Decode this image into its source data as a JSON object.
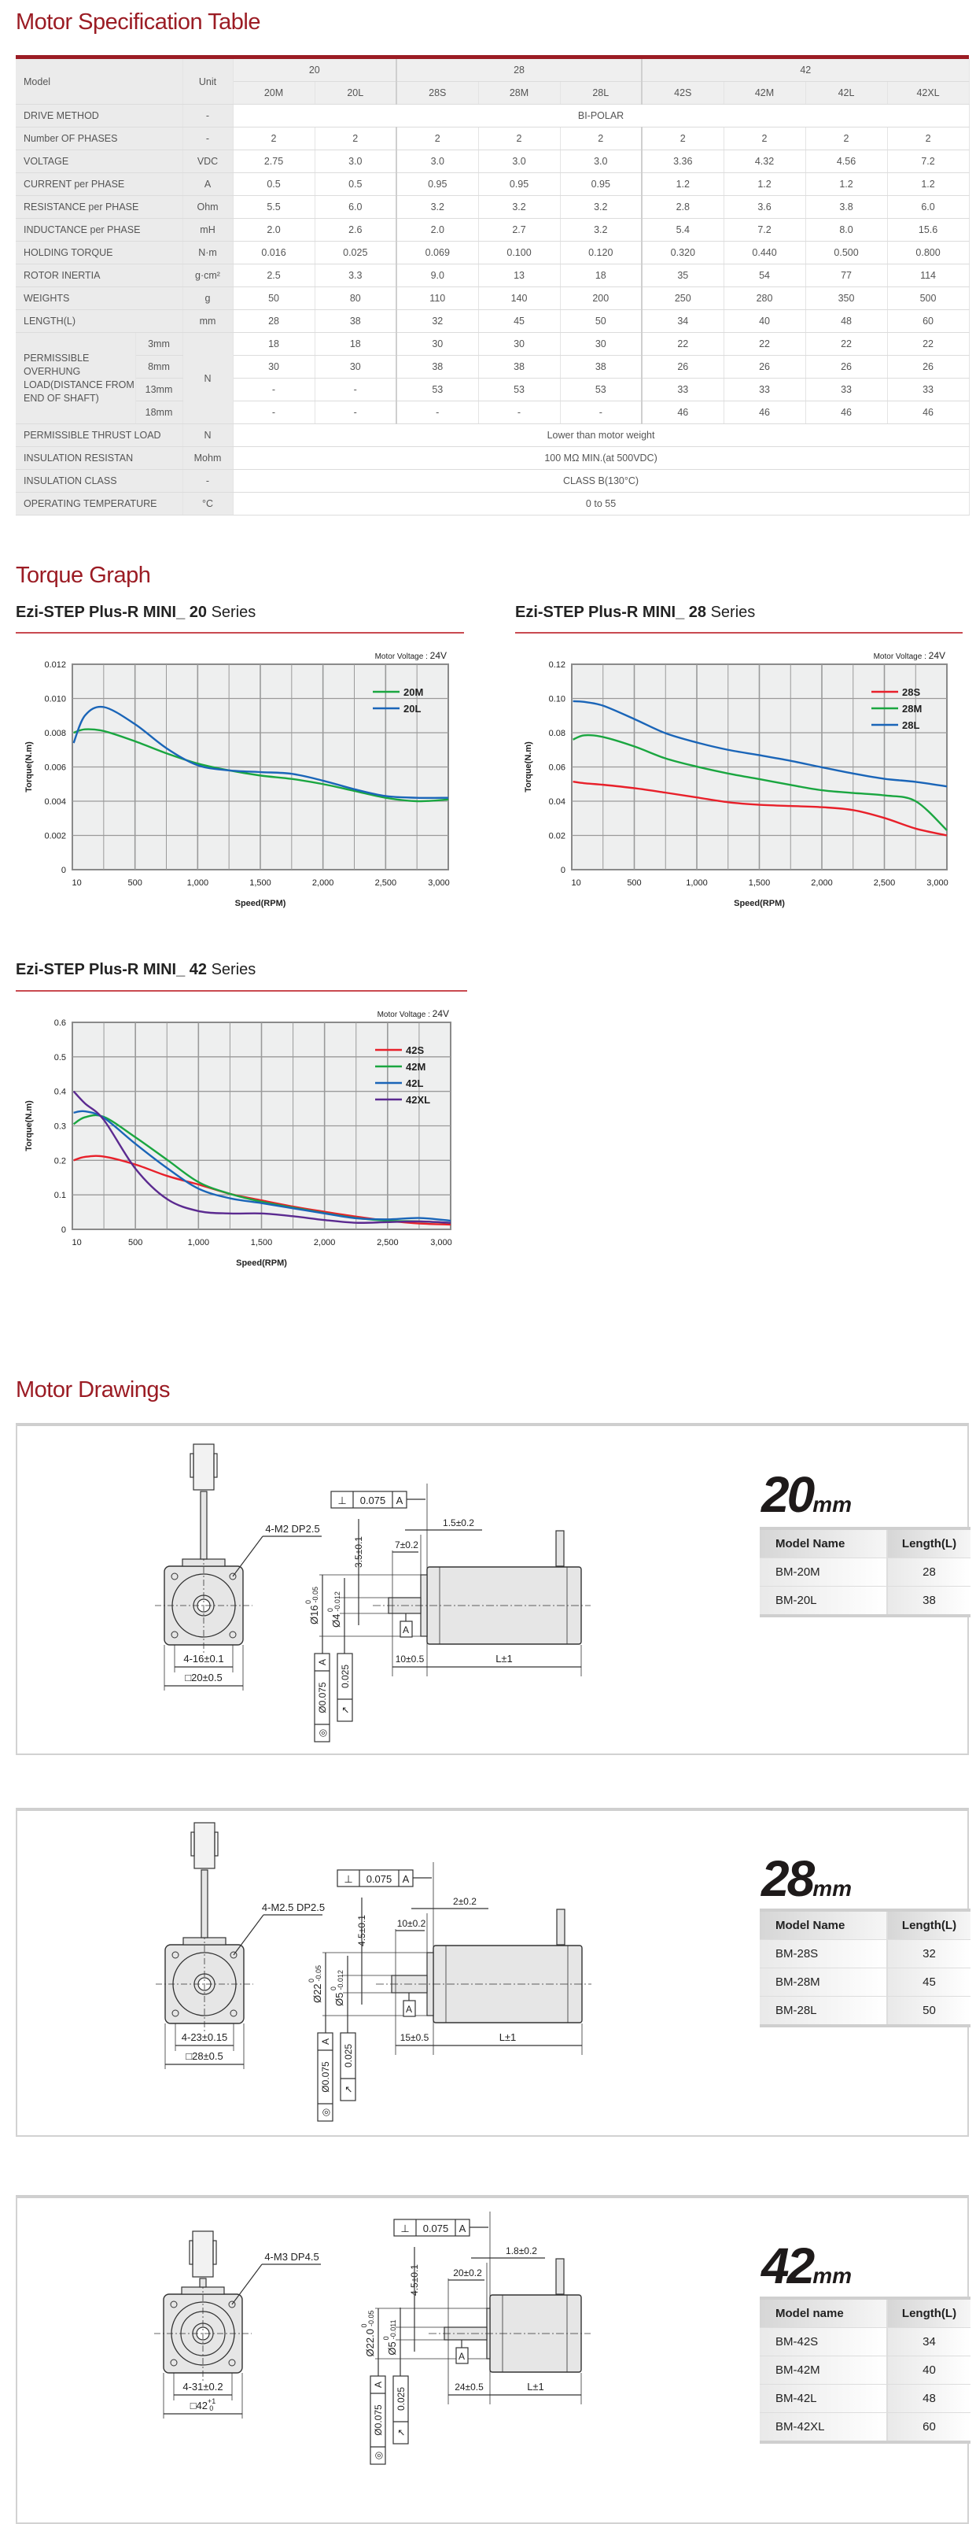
{
  "spec": {
    "title": "Motor Specification Table",
    "header": {
      "model": "Model",
      "unit": "Unit",
      "groups": [
        "20",
        "28",
        "42"
      ],
      "models": [
        "20M",
        "20L",
        "28S",
        "28M",
        "28L",
        "42S",
        "42M",
        "42L",
        "42XL"
      ]
    },
    "rows": [
      {
        "label": "DRIVE METHOD",
        "unit": "-",
        "span": "BI-POLAR"
      },
      {
        "label": "Number OF PHASES",
        "unit": "-",
        "values": [
          "2",
          "2",
          "2",
          "2",
          "2",
          "2",
          "2",
          "2",
          "2"
        ]
      },
      {
        "label": "VOLTAGE",
        "unit": "VDC",
        "values": [
          "2.75",
          "3.0",
          "3.0",
          "3.0",
          "3.0",
          "3.36",
          "4.32",
          "4.56",
          "7.2"
        ]
      },
      {
        "label": "CURRENT per PHASE",
        "unit": "A",
        "values": [
          "0.5",
          "0.5",
          "0.95",
          "0.95",
          "0.95",
          "1.2",
          "1.2",
          "1.2",
          "1.2"
        ]
      },
      {
        "label": "RESISTANCE per PHASE",
        "unit": "Ohm",
        "values": [
          "5.5",
          "6.0",
          "3.2",
          "3.2",
          "3.2",
          "2.8",
          "3.6",
          "3.8",
          "6.0"
        ]
      },
      {
        "label": "INDUCTANCE per PHASE",
        "unit": "mH",
        "values": [
          "2.0",
          "2.6",
          "2.0",
          "2.7",
          "3.2",
          "5.4",
          "7.2",
          "8.0",
          "15.6"
        ]
      },
      {
        "label": "HOLDING TORQUE",
        "unit": "N·m",
        "values": [
          "0.016",
          "0.025",
          "0.069",
          "0.100",
          "0.120",
          "0.320",
          "0.440",
          "0.500",
          "0.800"
        ]
      },
      {
        "label": "ROTOR INERTIA",
        "unit": "g·cm²",
        "values": [
          "2.5",
          "3.3",
          "9.0",
          "13",
          "18",
          "35",
          "54",
          "77",
          "114"
        ]
      },
      {
        "label": "WEIGHTS",
        "unit": "g",
        "values": [
          "50",
          "80",
          "110",
          "140",
          "200",
          "250",
          "280",
          "350",
          "500"
        ]
      },
      {
        "label": "LENGTH(L)",
        "unit": "mm",
        "values": [
          "28",
          "38",
          "32",
          "45",
          "50",
          "34",
          "40",
          "48",
          "60"
        ]
      }
    ],
    "overhung": {
      "label": "PERMISSIBLE OVERHUNG LOAD(DISTANCE FROM END OF SHAFT)",
      "unit": "N",
      "rows": [
        {
          "distance": "3mm",
          "values": [
            "18",
            "18",
            "30",
            "30",
            "30",
            "22",
            "22",
            "22",
            "22"
          ]
        },
        {
          "distance": "8mm",
          "values": [
            "30",
            "30",
            "38",
            "38",
            "38",
            "26",
            "26",
            "26",
            "26"
          ]
        },
        {
          "distance": "13mm",
          "values": [
            "-",
            "-",
            "53",
            "53",
            "53",
            "33",
            "33",
            "33",
            "33"
          ]
        },
        {
          "distance": "18mm",
          "values": [
            "-",
            "-",
            "-",
            "-",
            "-",
            "46",
            "46",
            "46",
            "46"
          ]
        }
      ]
    },
    "tail_rows": [
      {
        "label": "PERMISSIBLE THRUST LOAD",
        "unit": "N",
        "span": "Lower than motor weight"
      },
      {
        "label": "INSULATION RESISTAN",
        "unit": "Mohm",
        "span": "100 MΩ MIN.(at 500VDC)"
      },
      {
        "label": "INSULATION CLASS",
        "unit": "-",
        "span": "CLASS B(130°C)"
      },
      {
        "label": "OPERATING TEMPERATURE",
        "unit": "°C",
        "span": "0 to 55"
      }
    ]
  },
  "torque": {
    "title": "Torque Graph",
    "subtitle_prefix": "Ezi-STEP Plus-R MINI_ ",
    "subtitle_suffix": "Series"
  },
  "chart_data": [
    {
      "type": "line",
      "series_label": "20",
      "voltage_label": "Motor Voltage : ",
      "voltage": "24V",
      "xlabel": "Speed(RPM)",
      "ylabel": "Torque(N.m)",
      "xlim": [
        0,
        3000
      ],
      "ylim": [
        0,
        0.012
      ],
      "xticks": [
        "10",
        "500",
        "1,000",
        "1,500",
        "2,000",
        "2,500",
        "3,000"
      ],
      "yticks": [
        "0",
        "0.002",
        "0.004",
        "0.006",
        "0.008",
        "0.010",
        "0.012"
      ],
      "x": [
        10,
        100,
        250,
        500,
        750,
        1000,
        1250,
        1500,
        1750,
        2000,
        2250,
        2500,
        2750,
        3000
      ],
      "grid": true,
      "legend": "top-right",
      "series": [
        {
          "name": "20M",
          "color": "#1aa640",
          "values": [
            0.008,
            0.0082,
            0.0081,
            0.0075,
            0.0068,
            0.0062,
            0.0058,
            0.0055,
            0.0053,
            0.005,
            0.0046,
            0.0042,
            0.004,
            0.0041
          ]
        },
        {
          "name": "20L",
          "color": "#1a65b8",
          "values": [
            0.0074,
            0.009,
            0.0095,
            0.0085,
            0.0071,
            0.0061,
            0.0058,
            0.0057,
            0.0056,
            0.0052,
            0.0047,
            0.0043,
            0.0042,
            0.0042
          ]
        }
      ]
    },
    {
      "type": "line",
      "series_label": "28",
      "voltage_label": "Motor Voltage : ",
      "voltage": "24V",
      "xlabel": "Speed(RPM)",
      "ylabel": "Torque(N.m)",
      "xlim": [
        0,
        3000
      ],
      "ylim": [
        0,
        0.12
      ],
      "xticks": [
        "10",
        "500",
        "1,000",
        "1,500",
        "2,000",
        "2,500",
        "3,000"
      ],
      "yticks": [
        "0",
        "0.02",
        "0.04",
        "0.06",
        "0.08",
        "0.10",
        "0.12"
      ],
      "x": [
        10,
        100,
        250,
        500,
        750,
        1000,
        1250,
        1500,
        1750,
        2000,
        2250,
        2500,
        2750,
        3000
      ],
      "grid": true,
      "legend": "top-right",
      "series": [
        {
          "name": "28S",
          "color": "#e8202a",
          "values": [
            0.0514,
            0.0505,
            0.0496,
            0.0476,
            0.045,
            0.0422,
            0.0394,
            0.0379,
            0.0372,
            0.0365,
            0.0348,
            0.0302,
            0.024,
            0.02
          ]
        },
        {
          "name": "28M",
          "color": "#1aa640",
          "values": [
            0.076,
            0.0785,
            0.0775,
            0.072,
            0.065,
            0.0602,
            0.0562,
            0.0529,
            0.0495,
            0.0464,
            0.0448,
            0.0434,
            0.04,
            0.023
          ]
        },
        {
          "name": "28L",
          "color": "#1a65b8",
          "values": [
            0.0984,
            0.098,
            0.0958,
            0.088,
            0.0797,
            0.0743,
            0.07,
            0.0669,
            0.0636,
            0.0598,
            0.0562,
            0.0531,
            0.0513,
            0.0486
          ]
        }
      ]
    },
    {
      "type": "line",
      "series_label": "42",
      "voltage_label": "Motor Voltage : ",
      "voltage": "24V",
      "xlabel": "Speed(RPM)",
      "ylabel": "Torque(N.m)",
      "xlim": [
        0,
        3000
      ],
      "ylim": [
        0,
        0.6
      ],
      "xticks": [
        "10",
        "500",
        "1,000",
        "1,500",
        "2,000",
        "2,500",
        "3,000"
      ],
      "yticks": [
        "0",
        "0.1",
        "0.2",
        "0.3",
        "0.4",
        "0.5",
        "0.6"
      ],
      "x": [
        10,
        100,
        250,
        500,
        750,
        1000,
        1250,
        1500,
        1750,
        2000,
        2250,
        2500,
        2750,
        3000
      ],
      "grid": true,
      "legend": "top-right",
      "series": [
        {
          "name": "42S",
          "color": "#e8202a",
          "values": [
            0.2,
            0.21,
            0.211,
            0.188,
            0.155,
            0.13,
            0.103,
            0.084,
            0.066,
            0.051,
            0.037,
            0.025,
            0.017,
            0.014
          ]
        },
        {
          "name": "42M",
          "color": "#1aa640",
          "values": [
            0.305,
            0.325,
            0.326,
            0.267,
            0.202,
            0.137,
            0.103,
            0.08,
            0.063,
            0.047,
            0.033,
            0.025,
            0.023,
            0.019
          ]
        },
        {
          "name": "42L",
          "color": "#1a65b8",
          "values": [
            0.338,
            0.342,
            0.323,
            0.248,
            0.178,
            0.118,
            0.09,
            0.076,
            0.061,
            0.046,
            0.032,
            0.029,
            0.033,
            0.025
          ]
        },
        {
          "name": "42XL",
          "color": "#5b2a90",
          "values": [
            0.4,
            0.365,
            0.317,
            0.176,
            0.088,
            0.053,
            0.046,
            0.046,
            0.038,
            0.027,
            0.019,
            0.021,
            0.023,
            0.019
          ]
        }
      ]
    }
  ],
  "drawings": {
    "title": "Motor Drawings",
    "panels": [
      {
        "size": "20",
        "unit": "mm",
        "col_model": "Model Name",
        "col_length": "Length(L)",
        "models": [
          {
            "name": "BM-20M",
            "length": "28"
          },
          {
            "name": "BM-20L",
            "length": "38"
          }
        ],
        "dims": {
          "mount": "4-M2 DP2.5",
          "pcd": "4-16±0.1",
          "square": "□20±0.5",
          "square_tol_up": "",
          "square_tol_low": "",
          "perp_symbol": "⊥",
          "perp": "0.075",
          "datum": "A",
          "flange_gap": "1.5±0.2",
          "key_len": "7±0.2",
          "key": "3.5±0.1",
          "pilot": "Ø16",
          "pilot_tol_up": "0",
          "pilot_tol_low": "-0.05",
          "shaft": "Ø4",
          "shaft_tol_up": "0",
          "shaft_tol_low": "-0.012",
          "conc_symbol": "◎",
          "conc": "Ø0.075",
          "runout_symbol": "↗",
          "runout": "0.025",
          "shaft_len": "10±0.5",
          "body_len": "L±1"
        }
      },
      {
        "size": "28",
        "unit": "mm",
        "col_model": "Model Name",
        "col_length": "Length(L)",
        "models": [
          {
            "name": "BM-28S",
            "length": "32"
          },
          {
            "name": "BM-28M",
            "length": "45"
          },
          {
            "name": "BM-28L",
            "length": "50"
          }
        ],
        "dims": {
          "mount": "4-M2.5 DP2.5",
          "pcd": "4-23±0.15",
          "square": "□28±0.5",
          "square_tol_up": "",
          "square_tol_low": "",
          "perp_symbol": "⊥",
          "perp": "0.075",
          "datum": "A",
          "flange_gap": "2±0.2",
          "key_len": "10±0.2",
          "key": "4.5±0.1",
          "pilot": "Ø22",
          "pilot_tol_up": "0",
          "pilot_tol_low": "-0.05",
          "shaft": "Ø5",
          "shaft_tol_up": "0",
          "shaft_tol_low": "-0.012",
          "conc_symbol": "◎",
          "conc": "Ø0.075",
          "runout_symbol": "↗",
          "runout": "0.025",
          "shaft_len": "15±0.5",
          "body_len": "L±1"
        }
      },
      {
        "size": "42",
        "unit": "mm",
        "col_model": "Model name",
        "col_length": "Length(L)",
        "models": [
          {
            "name": "BM-42S",
            "length": "34"
          },
          {
            "name": "BM-42M",
            "length": "40"
          },
          {
            "name": "BM-42L",
            "length": "48"
          },
          {
            "name": "BM-42XL",
            "length": "60"
          }
        ],
        "dims": {
          "mount": "4-M3 DP4.5",
          "pcd": "4-31±0.2",
          "square": "□42",
          "square_tol_up": "+1",
          "square_tol_low": "0",
          "perp_symbol": "⊥",
          "perp": "0.075",
          "datum": "A",
          "flange_gap": "1.8±0.2",
          "key_len": "20±0.2",
          "key": "4.5±0.1",
          "pilot": "Ø22.0",
          "pilot_tol_up": "0",
          "pilot_tol_low": "-0.05",
          "shaft": "Ø5",
          "shaft_tol_up": "0",
          "shaft_tol_low": "-0.011",
          "conc_symbol": "◎",
          "conc": "Ø0.075",
          "runout_symbol": "↗",
          "runout": "0.025",
          "shaft_len": "24±0.5",
          "body_len": "L±1"
        }
      }
    ]
  }
}
